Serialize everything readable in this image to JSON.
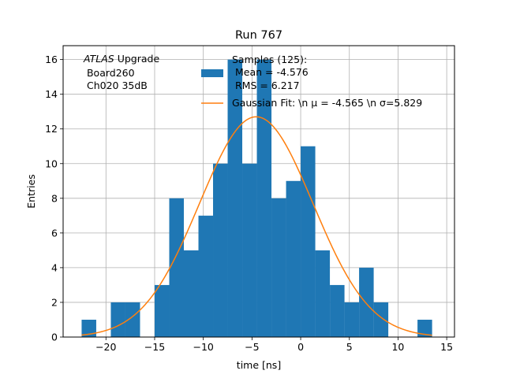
{
  "chart_data": {
    "type": "bar",
    "title": "Run 767",
    "xlabel": "time [ns]",
    "ylabel": "Entries",
    "xlim": [
      -24.4,
      15.8
    ],
    "ylim": [
      0,
      16.8
    ],
    "xticks": [
      -20,
      -15,
      -10,
      -5,
      0,
      5,
      10,
      15
    ],
    "yticks": [
      0,
      2,
      4,
      6,
      8,
      10,
      12,
      14,
      16
    ],
    "xtick_labels": [
      "−20",
      "−15",
      "−10",
      "−5",
      "0",
      "5",
      "10",
      "15"
    ],
    "ytick_labels": [
      "0",
      "2",
      "4",
      "6",
      "8",
      "10",
      "12",
      "14",
      "16"
    ],
    "grid": true,
    "bar_color": "#1f77b4",
    "fit_color": "#ff7f0e",
    "bin_width": 1.5,
    "bins": [
      {
        "x": -22.5,
        "y": 1
      },
      {
        "x": -19.5,
        "y": 2
      },
      {
        "x": -18.0,
        "y": 2
      },
      {
        "x": -15.0,
        "y": 3
      },
      {
        "x": -13.5,
        "y": 8
      },
      {
        "x": -12.0,
        "y": 5
      },
      {
        "x": -10.5,
        "y": 7
      },
      {
        "x": -9.0,
        "y": 10
      },
      {
        "x": -7.5,
        "y": 16
      },
      {
        "x": -6.0,
        "y": 10
      },
      {
        "x": -4.5,
        "y": 16
      },
      {
        "x": -3.0,
        "y": 8
      },
      {
        "x": -1.5,
        "y": 9
      },
      {
        "x": 0.0,
        "y": 11
      },
      {
        "x": 1.5,
        "y": 5
      },
      {
        "x": 3.0,
        "y": 3
      },
      {
        "x": 4.5,
        "y": 2
      },
      {
        "x": 6.0,
        "y": 4
      },
      {
        "x": 7.5,
        "y": 2
      },
      {
        "x": 12.0,
        "y": 1
      }
    ],
    "fit": {
      "mu": -4.565,
      "sigma": 5.829,
      "amplitude": 12.7,
      "x_range": [
        -22.5,
        13.5
      ]
    },
    "annotation": {
      "italic": "ATLAS",
      "line1": "Upgrade",
      "line2": " Board260",
      "line3": " Ch020 35dB"
    },
    "legend": {
      "placement": "top-right",
      "hist_line1": "Samples (125):",
      "hist_line2": " Mean = -4.576",
      "hist_line3": " RMS = 6.217",
      "fit_label": "Gaussian Fit: \\n μ = -4.565 \\n σ=5.829"
    }
  }
}
